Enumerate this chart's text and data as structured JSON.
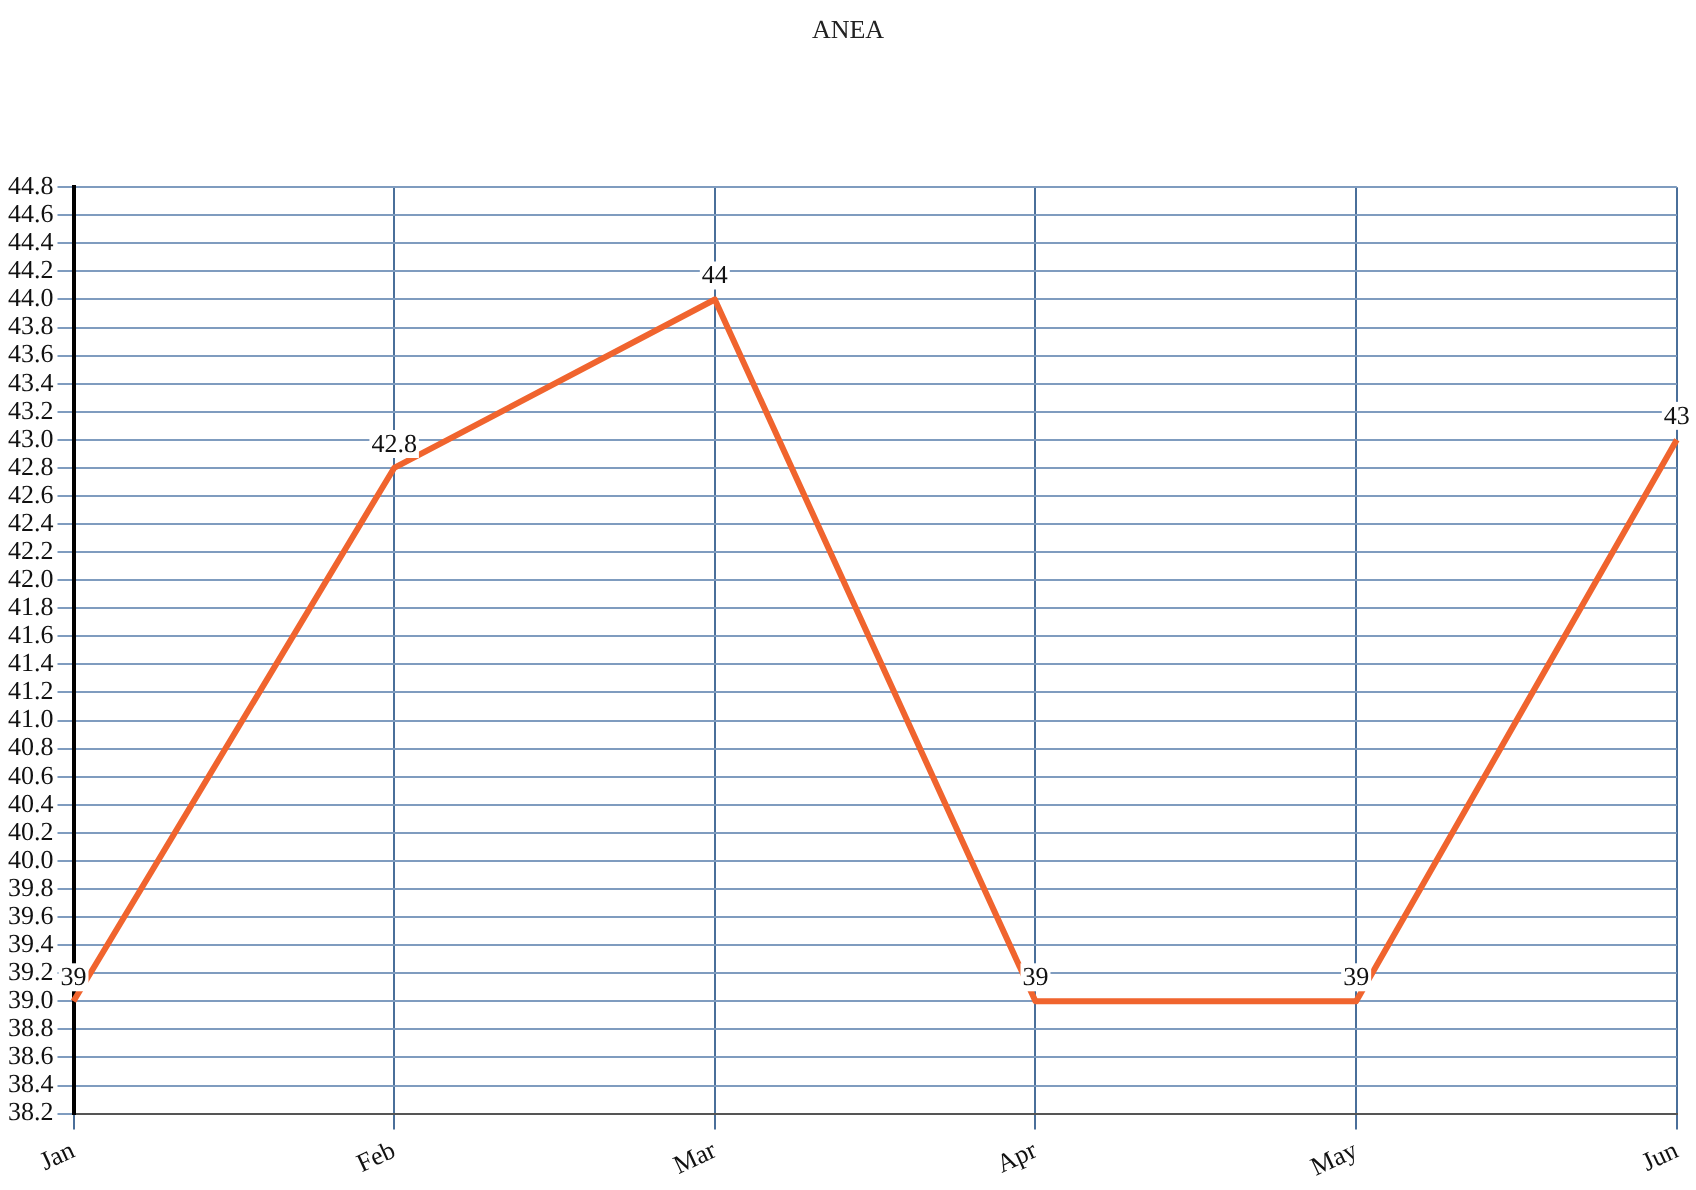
{
  "chart_data": {
    "type": "line",
    "title": "ANEA",
    "categories": [
      "Jan",
      "Feb",
      "Mar",
      "Apr",
      "May",
      "Jun"
    ],
    "series": [
      {
        "color": "#f0642e",
        "values": [
          39,
          42.8,
          44,
          39,
          39,
          43
        ]
      }
    ],
    "ylim": [
      38.2,
      44.8
    ],
    "yticks": [
      {
        "value": 38.2,
        "label": "38.2"
      },
      {
        "value": 38.4,
        "label": "38.4"
      },
      {
        "value": 38.6,
        "label": "38.6"
      },
      {
        "value": 38.8,
        "label": "38.8"
      },
      {
        "value": 39,
        "label": "39.0"
      },
      {
        "value": 39.2,
        "label": "39.2"
      },
      {
        "value": 39.4,
        "label": "39.4"
      },
      {
        "value": 39.6,
        "label": "39.6"
      },
      {
        "value": 39.8,
        "label": "39.8"
      },
      {
        "value": 40,
        "label": "40.0"
      },
      {
        "value": 40.2,
        "label": "40.2"
      },
      {
        "value": 40.4,
        "label": "40.4"
      },
      {
        "value": 40.6,
        "label": "40.6"
      },
      {
        "value": 40.8,
        "label": "40.8"
      },
      {
        "value": 41,
        "label": "41.0"
      },
      {
        "value": 41.2,
        "label": "41.2"
      },
      {
        "value": 41.4,
        "label": "41.4"
      },
      {
        "value": 41.6,
        "label": "41.6"
      },
      {
        "value": 41.8,
        "label": "41.8"
      },
      {
        "value": 42,
        "label": "42.0"
      },
      {
        "value": 42.2,
        "label": "42.2"
      },
      {
        "value": 42.4,
        "label": "42.4"
      },
      {
        "value": 42.6,
        "label": "42.6"
      },
      {
        "value": 42.8,
        "label": "42.8"
      },
      {
        "value": 43,
        "label": "43.0"
      },
      {
        "value": 43.2,
        "label": "43.2"
      },
      {
        "value": 43.4,
        "label": "43.4"
      },
      {
        "value": 43.6,
        "label": "43.6"
      },
      {
        "value": 43.8,
        "label": "43.8"
      },
      {
        "value": 44,
        "label": "44.0"
      },
      {
        "value": 44.2,
        "label": "44.2"
      },
      {
        "value": 44.4,
        "label": "44.4"
      },
      {
        "value": 44.6,
        "label": "44.6"
      },
      {
        "value": 44.8,
        "label": "44.8"
      }
    ],
    "grid": true,
    "legend": false,
    "marker": "none",
    "line_style": "solid",
    "data_labels": true
  }
}
